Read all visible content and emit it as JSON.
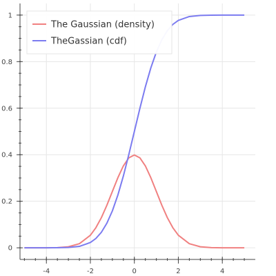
{
  "chart_data": {
    "type": "line",
    "title": "",
    "xlabel": "",
    "ylabel": "",
    "xlim": [
      -5.2,
      5.5
    ],
    "ylim": [
      -0.05,
      1.05
    ],
    "xticks": [
      -4,
      -2,
      0,
      2,
      4
    ],
    "xtick_labels": [
      "-4",
      "-2",
      "0",
      "2",
      "4"
    ],
    "yticks": [
      0,
      0.2,
      0.4,
      0.6,
      0.8,
      1
    ],
    "ytick_labels": [
      "0",
      "0.2",
      "0.4",
      "0.6",
      "0.8",
      "1"
    ],
    "grid": true,
    "legend_position": "top-left",
    "series": [
      {
        "name": "The Gaussian (density)",
        "color": "#f08080",
        "x": [
          -5,
          -4.5,
          -4,
          -3.5,
          -3,
          -2.5,
          -2,
          -1.75,
          -1.5,
          -1.25,
          -1,
          -0.75,
          -0.5,
          -0.25,
          0,
          0.25,
          0.5,
          0.75,
          1,
          1.25,
          1.5,
          1.75,
          2,
          2.5,
          3,
          3.5,
          4,
          4.5,
          5
        ],
        "y": [
          1.5e-06,
          1.6e-05,
          0.000134,
          0.000873,
          0.004432,
          0.017528,
          0.053991,
          0.086277,
          0.129518,
          0.182649,
          0.241971,
          0.301137,
          0.352065,
          0.386668,
          0.398942,
          0.386668,
          0.352065,
          0.301137,
          0.241971,
          0.182649,
          0.129518,
          0.086277,
          0.053991,
          0.017528,
          0.004432,
          0.000873,
          0.000134,
          1.6e-05,
          1.5e-06
        ]
      },
      {
        "name": "TheGassian (cdf)",
        "color": "#7b7bf0",
        "x": [
          -5,
          -4.5,
          -4,
          -3.5,
          -3,
          -2.5,
          -2,
          -1.75,
          -1.5,
          -1.25,
          -1,
          -0.75,
          -0.5,
          -0.25,
          0,
          0.25,
          0.5,
          0.75,
          1,
          1.25,
          1.5,
          1.75,
          2,
          2.5,
          3,
          3.5,
          4,
          4.5,
          5
        ],
        "y": [
          3e-07,
          3.4e-06,
          3.2e-05,
          0.000233,
          0.00135,
          0.00621,
          0.02275,
          0.04006,
          0.06681,
          0.10565,
          0.15866,
          0.22663,
          0.30854,
          0.40129,
          0.5,
          0.59871,
          0.69146,
          0.77337,
          0.84134,
          0.89435,
          0.93319,
          0.95994,
          0.97725,
          0.99379,
          0.99865,
          0.99977,
          0.99997,
          0.999997,
          0.9999997
        ]
      }
    ]
  },
  "colors": {
    "background": "#ffffff",
    "grid": "#e6e6e6",
    "axis": "#444444",
    "legend_border": "#e5e5e5"
  }
}
